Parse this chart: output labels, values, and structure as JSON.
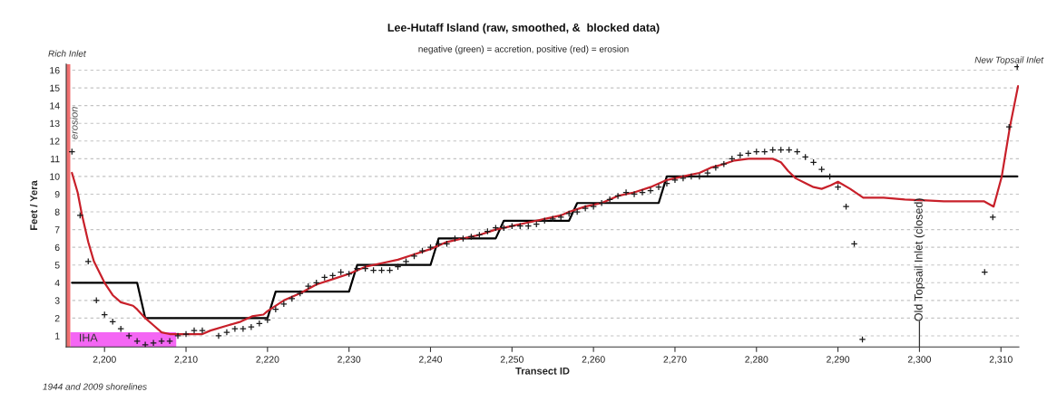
{
  "chart_data": {
    "type": "line",
    "title": "Lee-Hutaff Island (raw, smoothed, &  blocked data)",
    "subtitle": "negative (green) = accretion, positive (red) = erosion",
    "xlabel": "Transect ID",
    "ylabel": "Feet / Yera",
    "series": [
      {
        "name": "IHA",
        "type": "area",
        "color": "#f466f4",
        "x": [
          2195.8,
          2208.8
        ],
        "values": [
          1.2,
          1.2
        ]
      },
      {
        "color": "#000000",
        "x": [
          2196,
          2204,
          2205,
          2220,
          2221,
          2230,
          2231,
          2240,
          2241,
          2248,
          2249,
          2257,
          2258,
          2268,
          2269,
          2312
        ],
        "values": [
          4,
          4,
          2,
          2,
          3.5,
          3.5,
          5,
          5,
          6.5,
          6.5,
          7.5,
          7.5,
          8.5,
          8.5,
          10,
          10
        ]
      },
      {
        "color": "#c8202a",
        "x": [
          2196,
          2196.7,
          2197.2,
          2198,
          2198.7,
          2200,
          2201,
          2202,
          2203.5,
          2204,
          2205,
          2206,
          2207,
          2208,
          2212,
          2213,
          2215.2,
          2216.7,
          2218.1,
          2219.5,
          2220,
          2222,
          2224,
          2226,
          2228,
          2230,
          2232,
          2234,
          2236,
          2238,
          2240,
          2242,
          2244,
          2246,
          2248,
          2250,
          2252,
          2254,
          2256,
          2257,
          2259,
          2261,
          2263,
          2265,
          2267,
          2269,
          2271,
          2273,
          2274.4,
          2276,
          2277.3,
          2279,
          2282,
          2283,
          2283.9,
          2284.8,
          2286.1,
          2287,
          2288,
          2289.1,
          2290,
          2291.5,
          2293.1,
          2295.6,
          2298.2,
          2303,
          2305.6,
          2307.9,
          2309.1,
          2310.1,
          2311.1,
          2312.1
        ],
        "values": [
          10.2,
          9.1,
          7.9,
          6.3,
          5.2,
          4.0,
          3.3,
          2.9,
          2.7,
          2.5,
          2.0,
          1.6,
          1.2,
          1.1,
          1.1,
          1.3,
          1.6,
          1.8,
          2.1,
          2.2,
          2.4,
          3.0,
          3.4,
          3.9,
          4.2,
          4.5,
          4.9,
          5.1,
          5.3,
          5.6,
          5.9,
          6.3,
          6.5,
          6.7,
          7.0,
          7.2,
          7.4,
          7.6,
          7.8,
          8.0,
          8.3,
          8.5,
          8.9,
          9.1,
          9.4,
          9.8,
          10.0,
          10.2,
          10.5,
          10.7,
          10.9,
          11.0,
          11.0,
          10.8,
          10.3,
          9.9,
          9.6,
          9.4,
          9.3,
          9.5,
          9.7,
          9.3,
          8.8,
          8.8,
          8.7,
          8.6,
          8.6,
          8.6,
          8.3,
          10.0,
          12.8,
          15.1
        ]
      },
      {
        "type": "scatter",
        "marker": "cross",
        "color": "#1a1a1a",
        "x": [
          2196,
          2197,
          2198,
          2199,
          2200,
          2201,
          2202,
          2203,
          2204,
          2205,
          2206,
          2207,
          2208,
          2209,
          2210,
          2211,
          2212,
          2214,
          2215,
          2216,
          2217,
          2218,
          2219,
          2220,
          2221,
          2222,
          2223,
          2224,
          2225,
          2226,
          2227,
          2228,
          2229,
          2230,
          2231,
          2232,
          2233,
          2234,
          2235,
          2236,
          2237,
          2238,
          2239,
          2240,
          2241,
          2242,
          2243,
          2244,
          2245,
          2246,
          2247,
          2248,
          2249,
          2250,
          2251,
          2252,
          2253,
          2254,
          2255,
          2256,
          2257,
          2258,
          2259,
          2260,
          2261,
          2262,
          2263,
          2264,
          2265,
          2266,
          2267,
          2268,
          2269,
          2270,
          2271,
          2272,
          2273,
          2274,
          2275,
          2276,
          2277,
          2278,
          2279,
          2280,
          2281,
          2282,
          2283,
          2284,
          2285,
          2286,
          2287,
          2288,
          2289,
          2290,
          2291,
          2292,
          2293,
          2308,
          2309,
          2311,
          2312
        ],
        "values": [
          11.4,
          7.8,
          5.2,
          3.0,
          2.2,
          1.8,
          1.4,
          1.0,
          0.7,
          0.5,
          0.6,
          0.7,
          0.7,
          1.0,
          1.1,
          1.3,
          1.3,
          1.0,
          1.2,
          1.4,
          1.4,
          1.5,
          1.7,
          1.9,
          2.5,
          2.8,
          3.1,
          3.4,
          3.8,
          4.0,
          4.3,
          4.4,
          4.6,
          4.5,
          4.8,
          4.8,
          4.7,
          4.7,
          4.7,
          4.9,
          5.2,
          5.5,
          5.8,
          6.0,
          6.2,
          6.2,
          6.5,
          6.5,
          6.6,
          6.7,
          6.9,
          7.1,
          7.1,
          7.2,
          7.2,
          7.2,
          7.3,
          7.5,
          7.6,
          7.7,
          7.9,
          8.0,
          8.2,
          8.3,
          8.5,
          8.7,
          8.9,
          9.1,
          9.0,
          9.1,
          9.2,
          9.4,
          9.6,
          9.8,
          9.9,
          10.0,
          10.0,
          10.2,
          10.5,
          10.7,
          11.0,
          11.2,
          11.3,
          11.4,
          11.4,
          11.5,
          11.5,
          11.5,
          11.4,
          11.1,
          10.8,
          10.4,
          10.0,
          9.4,
          8.3,
          6.2,
          0.8,
          4.6,
          7.7,
          12.8,
          16.2
        ]
      }
    ],
    "xlim": [
      2195.3,
      2312.2
    ],
    "xticks": [
      {
        "value": 2200,
        "label": "2,200"
      },
      {
        "value": 2210,
        "label": "2,210"
      },
      {
        "value": 2220,
        "label": "2,220"
      },
      {
        "value": 2230,
        "label": "2,230"
      },
      {
        "value": 2240,
        "label": "2,240"
      },
      {
        "value": 2250,
        "label": "2,250"
      },
      {
        "value": 2260,
        "label": "2,260"
      },
      {
        "value": 2270,
        "label": "2,270"
      },
      {
        "value": 2280,
        "label": "2,280"
      },
      {
        "value": 2290,
        "label": "2,290"
      },
      {
        "value": 2300,
        "label": "2,300"
      },
      {
        "value": 2310,
        "label": "2,310"
      }
    ],
    "ylim": [
      0.37,
      16.35
    ],
    "yticks": [
      1,
      2,
      3,
      4,
      5,
      6,
      7,
      8,
      9,
      10,
      11,
      12,
      13,
      14,
      15,
      16
    ],
    "grid": "y",
    "bands": [
      {
        "axis": "x",
        "from": 2195.3,
        "to": 2195.8,
        "label": "erosion",
        "color": "#f07070"
      }
    ],
    "ref_lines": [
      {
        "axis": "x",
        "value": 2300,
        "label": "Old Topsail Inlet (closed)",
        "color": "#333333"
      }
    ],
    "annotations": [
      "Rich Inlet",
      "New Topsail Inlet",
      "1944 and 2009 shorelines"
    ]
  }
}
